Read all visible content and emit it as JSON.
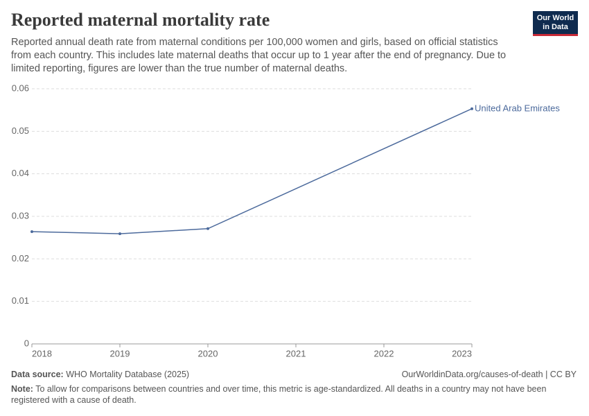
{
  "chart_data": {
    "type": "line",
    "title": "Reported maternal mortality rate",
    "subtitle": "Reported annual death rate from maternal conditions per 100,000 women and girls, based on official statistics from each country. This includes late maternal deaths that occur up to 1 year after the end of pregnancy. Due to limited reporting, figures are lower than the true number of maternal deaths.",
    "logo": [
      "Our World",
      "in Data"
    ],
    "x": [
      2018,
      2019,
      2020,
      2023
    ],
    "series": [
      {
        "name": "United Arab Emirates",
        "color": "#4c6a9c",
        "values": [
          0.0264,
          0.0259,
          0.0271,
          0.0553
        ]
      }
    ],
    "xlim": [
      2018,
      2023
    ],
    "xticks": [
      2018,
      2019,
      2020,
      2021,
      2022,
      2023
    ],
    "ylim": [
      0,
      0.06
    ],
    "yticks": [
      0,
      0.01,
      0.02,
      0.03,
      0.04,
      0.05,
      0.06
    ],
    "grid": true,
    "source_label": "Data source:",
    "source": "WHO Mortality Database (2025)",
    "url": "OurWorldinData.org/causes-of-death | CC BY",
    "note_label": "Note:",
    "note": "To allow for comparisons between countries and over time, this metric is age-standardized. All deaths in a country may not have been registered with a cause of death."
  }
}
